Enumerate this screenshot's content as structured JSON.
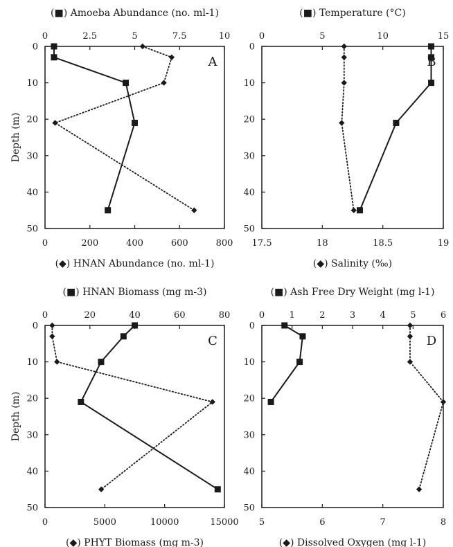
{
  "chart_data": [
    {
      "type": "line",
      "panel_letter": "A",
      "ylabel": "Depth (m)",
      "ylim": [
        0,
        50
      ],
      "yticks": [
        0,
        10,
        20,
        30,
        40,
        50
      ],
      "y_inverted": true,
      "top_axis": {
        "label": "(■) Amoeba Abundance (no. ml-1)",
        "range": [
          0,
          10
        ],
        "ticks": [
          "0",
          "2.5",
          "5",
          "7.5",
          "10"
        ]
      },
      "bottom_axis": {
        "label": "(◆) HNAN Abundance (no. ml-1)",
        "range": [
          0,
          800
        ],
        "ticks": [
          "0",
          "200",
          "400",
          "600",
          "800"
        ]
      },
      "series": [
        {
          "axis": "top",
          "marker": "square",
          "line": "solid",
          "points": [
            {
              "x": 0.5,
              "y": 0
            },
            {
              "x": 0.5,
              "y": 3
            },
            {
              "x": 4.5,
              "y": 10
            },
            {
              "x": 5.0,
              "y": 21
            },
            {
              "x": 3.5,
              "y": 45
            }
          ]
        },
        {
          "axis": "bottom",
          "marker": "diamond",
          "line": "dotted",
          "points": [
            {
              "x": 435,
              "y": 0
            },
            {
              "x": 565,
              "y": 3
            },
            {
              "x": 530,
              "y": 10
            },
            {
              "x": 45,
              "y": 21
            },
            {
              "x": 665,
              "y": 45
            }
          ]
        }
      ]
    },
    {
      "type": "line",
      "panel_letter": "B",
      "ylabel": "",
      "ylim": [
        0,
        50
      ],
      "yticks": [
        0,
        10,
        20,
        30,
        40,
        50
      ],
      "y_inverted": true,
      "top_axis": {
        "label": "(■) Temperature (°C)",
        "range": [
          0,
          15
        ],
        "ticks": [
          "0",
          "5",
          "10",
          "15"
        ]
      },
      "bottom_axis": {
        "label": "(◆) Salinity (‰)",
        "range": [
          17.5,
          19
        ],
        "ticks": [
          "17.5",
          "18",
          "18.5",
          "19"
        ]
      },
      "series": [
        {
          "axis": "top",
          "marker": "square",
          "line": "solid",
          "points": [
            {
              "x": 14.0,
              "y": 0
            },
            {
              "x": 14.0,
              "y": 3
            },
            {
              "x": 14.0,
              "y": 10
            },
            {
              "x": 11.1,
              "y": 21
            },
            {
              "x": 8.1,
              "y": 45
            }
          ]
        },
        {
          "axis": "bottom",
          "marker": "diamond",
          "line": "dotted",
          "points": [
            {
              "x": 18.18,
              "y": 0
            },
            {
              "x": 18.18,
              "y": 3
            },
            {
              "x": 18.18,
              "y": 10
            },
            {
              "x": 18.16,
              "y": 21
            },
            {
              "x": 18.26,
              "y": 45
            }
          ]
        }
      ]
    },
    {
      "type": "line",
      "panel_letter": "C",
      "ylabel": "Depth (m)",
      "ylim": [
        0,
        50
      ],
      "yticks": [
        0,
        10,
        20,
        30,
        40,
        50
      ],
      "y_inverted": true,
      "top_axis": {
        "label": "(■) HNAN Biomass (mg m-3)",
        "range": [
          0,
          80
        ],
        "ticks": [
          "0",
          "20",
          "40",
          "60",
          "80"
        ]
      },
      "bottom_axis": {
        "label": "(◆) PHYT Biomass (mg m-3)",
        "range": [
          0,
          15000
        ],
        "ticks": [
          "0",
          "5000",
          "10000",
          "15000"
        ]
      },
      "series": [
        {
          "axis": "top",
          "marker": "square",
          "line": "solid",
          "points": [
            {
              "x": 40,
              "y": 0
            },
            {
              "x": 35,
              "y": 3
            },
            {
              "x": 25,
              "y": 10
            },
            {
              "x": 16,
              "y": 21
            },
            {
              "x": 77,
              "y": 45
            }
          ]
        },
        {
          "axis": "bottom",
          "marker": "diamond",
          "line": "dotted",
          "points": [
            {
              "x": 600,
              "y": 0
            },
            {
              "x": 600,
              "y": 3
            },
            {
              "x": 1000,
              "y": 10
            },
            {
              "x": 14000,
              "y": 21
            },
            {
              "x": 4700,
              "y": 45
            }
          ]
        }
      ]
    },
    {
      "type": "line",
      "panel_letter": "D",
      "ylabel": "",
      "ylim": [
        0,
        50
      ],
      "yticks": [
        0,
        10,
        20,
        30,
        40,
        50
      ],
      "y_inverted": true,
      "top_axis": {
        "label": "(■) Ash Free Dry Weight (mg l-1)",
        "range": [
          0,
          6
        ],
        "ticks": [
          "0",
          "1",
          "2",
          "3",
          "4",
          "5",
          "6"
        ]
      },
      "bottom_axis": {
        "label": "(◆) Dissolved Oxygen (mg l-1)",
        "range": [
          5,
          8
        ],
        "ticks": [
          "5",
          "6",
          "7",
          "8"
        ]
      },
      "series": [
        {
          "axis": "top",
          "marker": "square",
          "line": "solid",
          "points": [
            {
              "x": 0.75,
              "y": 0
            },
            {
              "x": 1.35,
              "y": 3
            },
            {
              "x": 1.25,
              "y": 10
            },
            {
              "x": 0.3,
              "y": 21
            }
          ]
        },
        {
          "axis": "bottom",
          "marker": "diamond",
          "line": "dotted",
          "points": [
            {
              "x": 7.45,
              "y": 0
            },
            {
              "x": 7.45,
              "y": 3
            },
            {
              "x": 7.45,
              "y": 10
            },
            {
              "x": 8.0,
              "y": 21
            },
            {
              "x": 7.6,
              "y": 45
            }
          ]
        }
      ]
    }
  ]
}
